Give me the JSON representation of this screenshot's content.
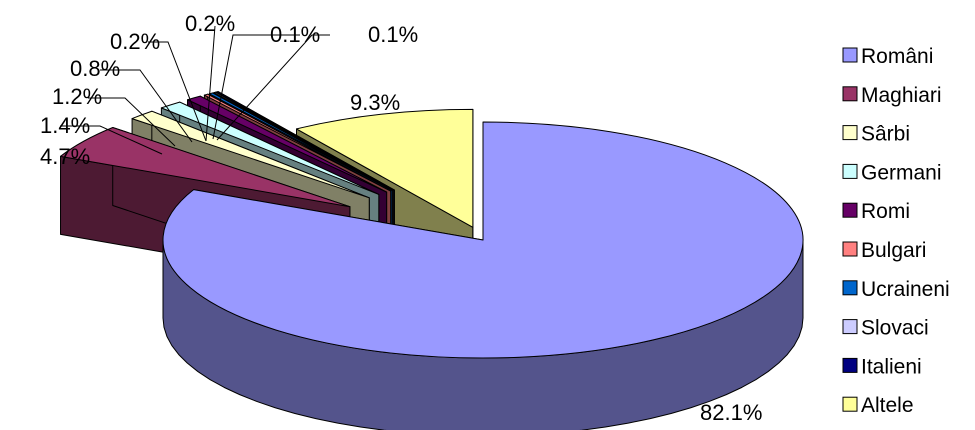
{
  "chart_data": {
    "type": "pie",
    "title": "",
    "legend_position": "right",
    "categories": [
      "Români",
      "Maghiari",
      "Sârbi",
      "Germani",
      "Romi",
      "Bulgari",
      "Ucraineni",
      "Slovaci",
      "Italieni",
      "Altele"
    ],
    "values": [
      82.1,
      4.7,
      1.4,
      1.2,
      0.8,
      0.2,
      0.2,
      0.1,
      0.1,
      9.3
    ],
    "labels": [
      "82.1%",
      "4.7%",
      "1.4%",
      "1.2%",
      "0.8%",
      "0.2%",
      "0.2%",
      "0.1%",
      "0.1%",
      "9.3%"
    ],
    "colors": [
      "#9999ff",
      "#993366",
      "#ffffcc",
      "#ccffff",
      "#660066",
      "#ff8080",
      "#0066cc",
      "#ccccff",
      "#000080",
      "#ffff99"
    ]
  }
}
